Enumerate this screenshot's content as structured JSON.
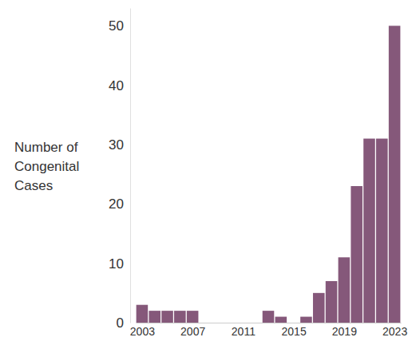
{
  "chart_data": {
    "type": "bar",
    "y_label": [
      "Number of",
      "Congenital",
      "Cases"
    ],
    "x": [
      2003,
      2004,
      2005,
      2006,
      2007,
      2008,
      2009,
      2010,
      2011,
      2012,
      2013,
      2014,
      2015,
      2016,
      2017,
      2018,
      2019,
      2020,
      2021,
      2022,
      2023
    ],
    "values": [
      3,
      2,
      2,
      2,
      2,
      0,
      0,
      0,
      0,
      0,
      2,
      1,
      0,
      1,
      5,
      7,
      11,
      23,
      31,
      31,
      50
    ],
    "color": "#85587a",
    "xlim": [
      2002.5,
      2023.5
    ],
    "xticks": [
      2003,
      2007,
      2011,
      2015,
      2019,
      2023
    ],
    "ylim": [
      0,
      53
    ],
    "yticks": [
      0,
      10,
      20,
      30,
      40,
      50
    ],
    "grid": false
  }
}
